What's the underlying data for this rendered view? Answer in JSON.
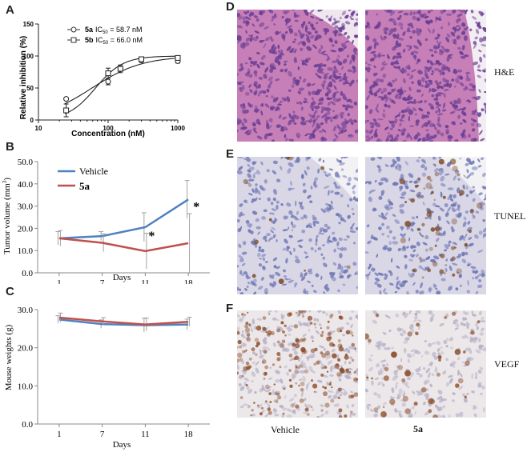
{
  "panels": {
    "A": "A",
    "B": "B",
    "C": "C",
    "D": "D",
    "E": "E",
    "F": "F"
  },
  "chart_data": [
    {
      "id": "A",
      "type": "scatter",
      "xlabel": "Concentration (nM)",
      "ylabel": "Relative inhibition (%)",
      "x_scale": "log",
      "xlim": [
        10,
        1000
      ],
      "ylim": [
        0,
        150
      ],
      "xticks": [
        "10",
        "100",
        "1000"
      ],
      "yticks": [
        "0",
        "50",
        "100",
        "150"
      ],
      "legend": [
        {
          "compound": "5a",
          "ic": "IC",
          "sub": "50",
          "value": " = 58.7 nM",
          "marker": "circle"
        },
        {
          "compound": "5b",
          "ic": "IC",
          "sub": "50",
          "value": " = 66.0 nM",
          "marker": "square"
        }
      ],
      "legend_placement": "top-left",
      "series": [
        {
          "marker": "circle",
          "x": [
            25,
            100,
            150,
            300,
            1000
          ],
          "y": [
            33,
            60,
            80,
            93,
            92
          ],
          "err": [
            0,
            5,
            4,
            2,
            3
          ]
        },
        {
          "marker": "square",
          "x": [
            25,
            100,
            150,
            300,
            1000
          ],
          "y": [
            15,
            73,
            80,
            95,
            97
          ],
          "err": [
            10,
            8,
            6,
            3,
            3
          ]
        }
      ],
      "fits": [
        {
          "ic50": 58.7,
          "hill": 1.2,
          "top": 100,
          "bottom": 0
        },
        {
          "ic50": 66.0,
          "hill": 2.2,
          "top": 100,
          "bottom": 0
        }
      ]
    },
    {
      "id": "B",
      "type": "line",
      "categories": [
        "1",
        "7",
        "11",
        "18"
      ],
      "xlabel": "Days",
      "ylabel": "Tumor volume (mm",
      "ylabel_sup": "3",
      "ylabel_end": ")",
      "ylim": [
        0,
        50
      ],
      "yticks": [
        "0.0",
        "10.0",
        "20.0",
        "30.0",
        "40.0",
        "50.0"
      ],
      "legend_placement": "top-left",
      "series": [
        {
          "name": "Vehicle",
          "color": "#4f81bd",
          "values": [
            15.5,
            16.5,
            20.5,
            33.0
          ],
          "err": [
            3.0,
            2.0,
            6.5,
            8.5
          ]
        },
        {
          "name": "5a",
          "color": "#c0504d",
          "values": [
            15.5,
            13.5,
            9.8,
            13.3
          ],
          "err": [
            3.5,
            4.0,
            8.0,
            13.3
          ]
        }
      ],
      "annotations": [
        "*",
        "*"
      ]
    },
    {
      "id": "C",
      "type": "line",
      "categories": [
        "1",
        "7",
        "11",
        "18"
      ],
      "xlabel": "Days",
      "ylabel": "Mouse weights (g)",
      "ylim": [
        0,
        30
      ],
      "yticks": [
        "0.0",
        "10.0",
        "20.0",
        "30.0"
      ],
      "series": [
        {
          "color": "#4f81bd",
          "values": [
            27.4,
            26.2,
            25.9,
            26.1
          ],
          "err": [
            1.0,
            1.1,
            1.8,
            1.4
          ]
        },
        {
          "color": "#c0504d",
          "values": [
            27.9,
            26.9,
            26.1,
            26.8
          ],
          "err": [
            1.2,
            1.0,
            1.7,
            1.2
          ]
        }
      ]
    }
  ],
  "micrographs": {
    "rows": [
      {
        "id": "D",
        "label": "H&E",
        "stain": "he"
      },
      {
        "id": "E",
        "label": "TUNEL",
        "stain": "tunel"
      },
      {
        "id": "F",
        "label": "VEGF",
        "stain": "vegf"
      }
    ],
    "columns": [
      "Vehicle",
      "5a"
    ],
    "colors": {
      "he_base": "#c77fb8",
      "he_nuclei": "#6a3f93",
      "tunel_base": "#d9d6e6",
      "tunel_nuclei": "#6f78b5",
      "tunel_brown": "#7a4b24",
      "vegf_base": "#ece7e9",
      "vegf_brown": "#8a4a26"
    }
  }
}
